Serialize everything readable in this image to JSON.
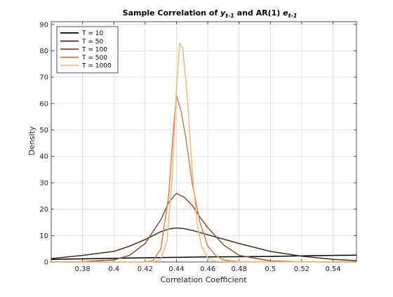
{
  "chart_data": {
    "type": "line",
    "title_parts": [
      {
        "text": "Sample Correlation of ",
        "italic": false
      },
      {
        "text": "y",
        "italic": true
      },
      {
        "text": "t-1",
        "italic": true,
        "sub": true
      },
      {
        "text": " and AR(1) ",
        "italic": false
      },
      {
        "text": "e",
        "italic": true
      },
      {
        "text": "t-1",
        "italic": true,
        "sub": true
      }
    ],
    "xlabel": "Correlation Coefficient",
    "ylabel": "Density",
    "xlim": [
      0.36,
      0.555
    ],
    "ylim": [
      0,
      91
    ],
    "xticks": [
      0.38,
      0.4,
      0.42,
      0.44,
      0.46,
      0.48,
      0.5,
      0.52,
      0.54
    ],
    "xtick_labels": [
      "0.38",
      "0.4",
      "0.42",
      "0.44",
      "0.46",
      "0.48",
      "0.5",
      "0.52",
      "0.54"
    ],
    "yticks": [
      0,
      10,
      20,
      30,
      40,
      50,
      60,
      70,
      80,
      90
    ],
    "ytick_labels": [
      "0",
      "10",
      "20",
      "30",
      "40",
      "50",
      "60",
      "70",
      "80",
      "90"
    ],
    "grid": true,
    "legend_position": "top-left",
    "series": [
      {
        "name": "T = 10",
        "color": "#000000",
        "x": [
          0.36,
          0.38,
          0.4,
          0.42,
          0.44,
          0.46,
          0.48,
          0.5,
          0.52,
          0.54,
          0.555
        ],
        "y": [
          1.0,
          1.2,
          1.4,
          1.6,
          1.75,
          1.9,
          2.0,
          2.1,
          2.3,
          2.5,
          2.6
        ]
      },
      {
        "name": "T = 50",
        "color": "#4a2a18",
        "x": [
          0.36,
          0.38,
          0.4,
          0.41,
          0.42,
          0.43,
          0.435,
          0.44,
          0.445,
          0.45,
          0.46,
          0.48,
          0.5,
          0.52,
          0.54,
          0.555
        ],
        "y": [
          1.3,
          2.5,
          4.0,
          6.0,
          8.5,
          11.5,
          12.5,
          12.9,
          12.6,
          12.0,
          10.3,
          7.0,
          4.0,
          2.2,
          1.0,
          0.5
        ]
      },
      {
        "name": "T = 100",
        "color": "#8c5030",
        "x": [
          0.36,
          0.38,
          0.4,
          0.41,
          0.42,
          0.43,
          0.435,
          0.44,
          0.445,
          0.45,
          0.455,
          0.46,
          0.47,
          0.48,
          0.5,
          0.52,
          0.555
        ],
        "y": [
          0,
          0.1,
          0.8,
          2.5,
          7.0,
          16.0,
          22.5,
          26.0,
          24.5,
          21.5,
          17.0,
          13.0,
          6.5,
          2.5,
          0.4,
          0.05,
          0
        ]
      },
      {
        "name": "T = 500",
        "color": "#e07b48",
        "x": [
          0.36,
          0.42,
          0.425,
          0.43,
          0.435,
          0.438,
          0.44,
          0.443,
          0.446,
          0.45,
          0.455,
          0.46,
          0.465,
          0.47,
          0.48,
          0.555
        ],
        "y": [
          0,
          0,
          0.5,
          5.0,
          25.0,
          50.0,
          63.0,
          57.0,
          47.0,
          30.0,
          15.0,
          6.0,
          2.5,
          0.8,
          0.1,
          0
        ]
      },
      {
        "name": "T = 1000",
        "color": "#f5b873",
        "x": [
          0.36,
          0.425,
          0.43,
          0.434,
          0.437,
          0.44,
          0.442,
          0.444,
          0.447,
          0.45,
          0.453,
          0.456,
          0.46,
          0.465,
          0.555
        ],
        "y": [
          0,
          0,
          1.0,
          8.0,
          30.0,
          65.0,
          83.0,
          81.0,
          62.0,
          35.0,
          15.0,
          6.0,
          1.5,
          0.2,
          0
        ]
      }
    ]
  }
}
